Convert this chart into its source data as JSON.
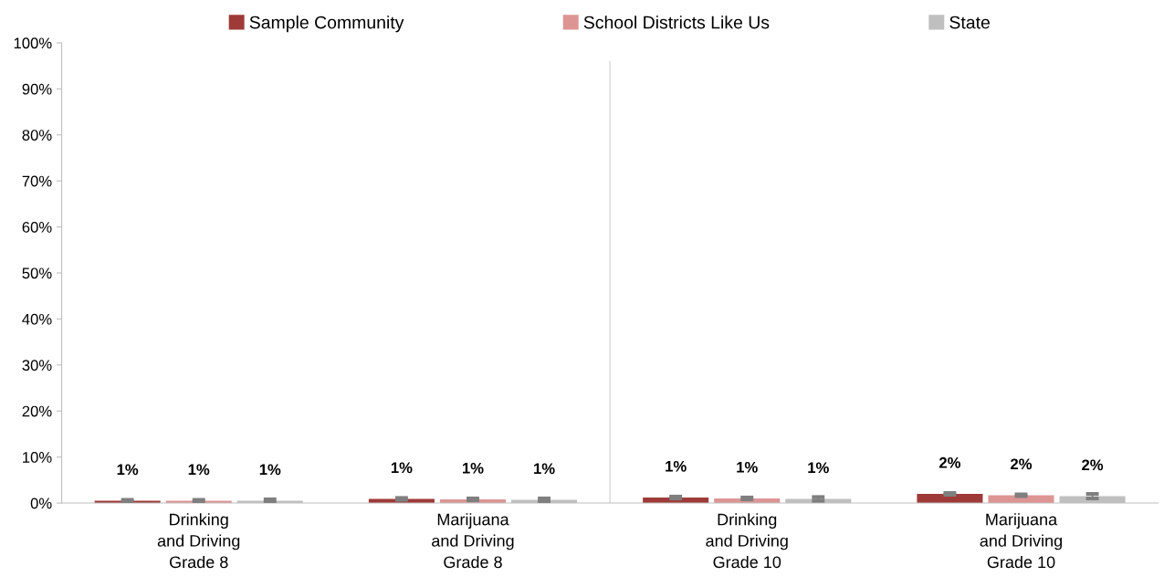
{
  "chart_data": {
    "type": "bar",
    "categories": [
      "Drinking\nand Driving\nGrade 8",
      "Marijuana\nand Driving\nGrade 8",
      "Drinking\nand Driving\nGrade 10",
      "Marijuana\nand Driving\nGrade 10"
    ],
    "series": [
      {
        "name": "Sample Community",
        "color": "#9e3a38",
        "values": [
          0.5,
          0.9,
          1.2,
          2.0
        ],
        "errors": [
          0.2,
          0.2,
          0.2,
          0.2
        ],
        "value_labels": [
          "1%",
          "1%",
          "1%",
          "2%"
        ]
      },
      {
        "name": "School Districts Like Us",
        "color": "#dd9594",
        "values": [
          0.5,
          0.8,
          1.0,
          1.7
        ],
        "errors": [
          0.2,
          0.2,
          0.2,
          0.2
        ],
        "value_labels": [
          "1%",
          "1%",
          "1%",
          "2%"
        ]
      },
      {
        "name": "State",
        "color": "#bfbfbf",
        "values": [
          0.5,
          0.7,
          0.9,
          1.5
        ],
        "errors": [
          0.3,
          0.3,
          0.4,
          0.5
        ],
        "value_labels": [
          "1%",
          "1%",
          "1%",
          "2%"
        ]
      }
    ],
    "ylim": [
      0,
      100
    ],
    "yticks": [
      {
        "value": 0,
        "label": "0%"
      },
      {
        "value": 10,
        "label": "10%"
      },
      {
        "value": 20,
        "label": "20%"
      },
      {
        "value": 30,
        "label": "30%"
      },
      {
        "value": 40,
        "label": "40%"
      },
      {
        "value": 50,
        "label": "50%"
      },
      {
        "value": 60,
        "label": "60%"
      },
      {
        "value": 70,
        "label": "70%"
      },
      {
        "value": 80,
        "label": "80%"
      },
      {
        "value": 90,
        "label": "90%"
      },
      {
        "value": 100,
        "label": "100%"
      }
    ],
    "grid": false,
    "legend": "top"
  }
}
